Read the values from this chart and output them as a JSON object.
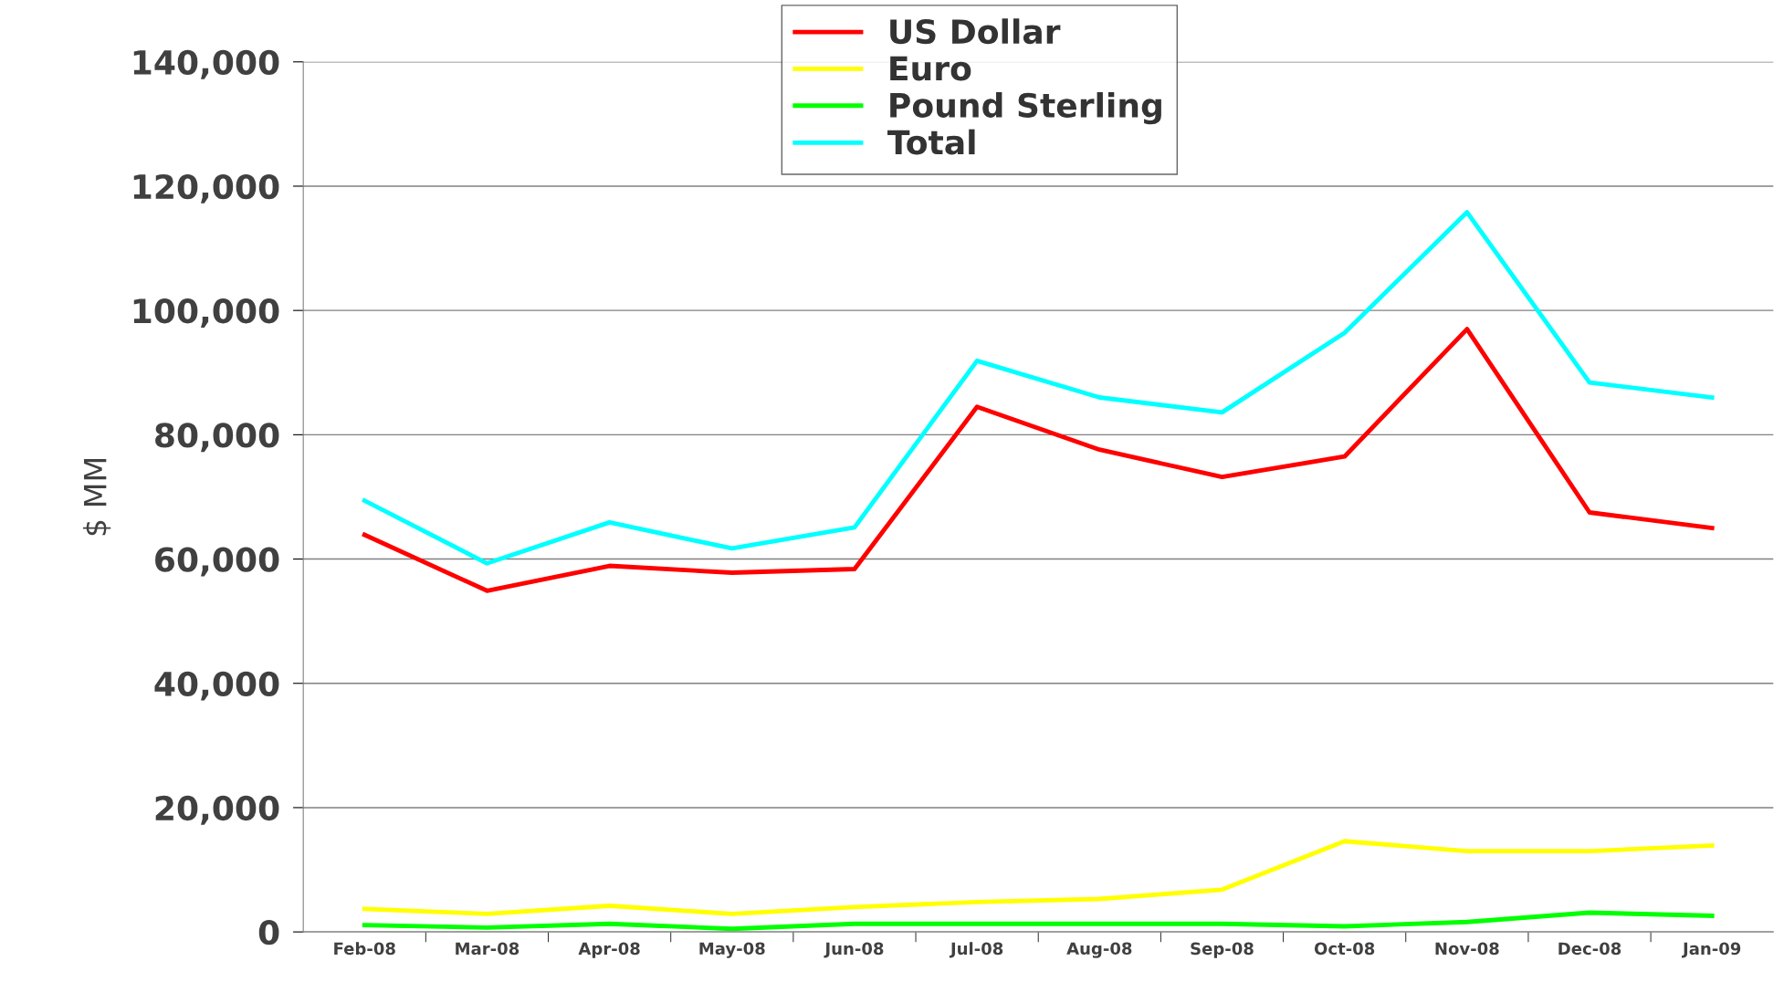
{
  "chart_data": {
    "type": "line",
    "ylabel": "$ MM",
    "categories": [
      "Feb-08",
      "Mar-08",
      "Apr-08",
      "May-08",
      "Jun-08",
      "Jul-08",
      "Aug-08",
      "Sep-08",
      "Oct-08",
      "Nov-08",
      "Dec-08",
      "Jan-09"
    ],
    "series": [
      {
        "name": "US Dollar",
        "color": "#ff0000",
        "values": [
          63900,
          54900,
          58900,
          57800,
          58400,
          84500,
          77600,
          73200,
          76500,
          97000,
          67500,
          65000
        ]
      },
      {
        "name": "Euro",
        "color": "#ffff00",
        "values": [
          3700,
          2900,
          4200,
          2900,
          4000,
          4800,
          5300,
          6800,
          14600,
          13000,
          13000,
          13900
        ]
      },
      {
        "name": "Pound Sterling",
        "color": "#00ff00",
        "values": [
          1100,
          700,
          1300,
          500,
          1300,
          1300,
          1300,
          1300,
          900,
          1600,
          3100,
          2600
        ]
      },
      {
        "name": "Total",
        "color": "#00ffff",
        "values": [
          69400,
          59300,
          65900,
          61700,
          65100,
          91900,
          86000,
          83600,
          96400,
          115800,
          88400,
          86000
        ]
      }
    ],
    "ylim": [
      0,
      140000
    ],
    "yticks": [
      {
        "value": 0,
        "label": "0"
      },
      {
        "value": 20000,
        "label": "20,000"
      },
      {
        "value": 40000,
        "label": "40,000"
      },
      {
        "value": 60000,
        "label": "60,000"
      },
      {
        "value": 80000,
        "label": "80,000"
      },
      {
        "value": 100000,
        "label": "100,000"
      },
      {
        "value": 120000,
        "label": "120,000"
      },
      {
        "value": 140000,
        "label": "140,000"
      }
    ],
    "grid": "y",
    "legend": "top",
    "marker": "none",
    "line_style": "solid"
  }
}
